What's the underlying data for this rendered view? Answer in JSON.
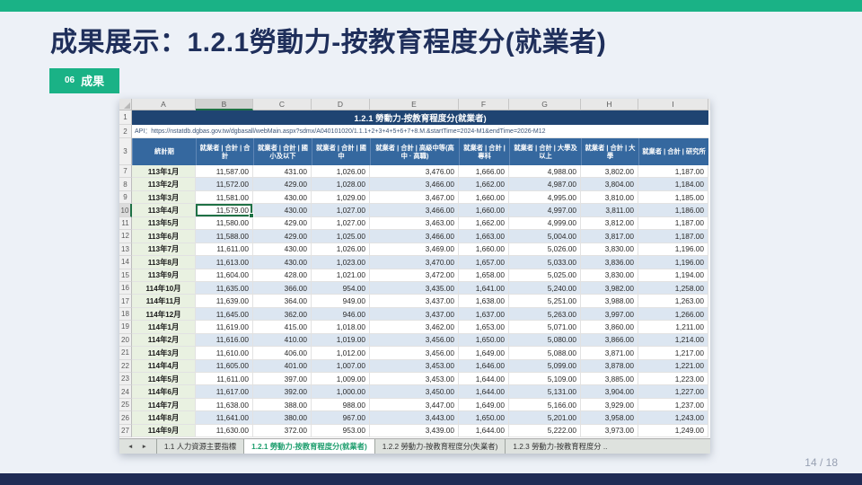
{
  "slide": {
    "title": "成果展示：1.2.1勞動力-按教育程度分(就業者)",
    "badge_number": "06",
    "badge_label": "成果",
    "page_indicator": "14 / 18",
    "accent_green": "#1AB286",
    "navy": "#1F2C55"
  },
  "sheet": {
    "column_letters": [
      "A",
      "B",
      "C",
      "D",
      "E",
      "F",
      "G",
      "H",
      "I"
    ],
    "selected": {
      "row": 10,
      "column": "B"
    },
    "title_row": {
      "number": "1",
      "text": "1.2.1  勞動力-按教育程度分(就業者)"
    },
    "api_row": {
      "number": "2",
      "text": "API：https://nstatdb.dgbas.gov.tw/dgbasall/webMain.aspx?sdmx/A040101020/1.1.1+2+3+4+5+6+7+8.M.&startTime=2024-M1&endTime=2026-M12"
    },
    "header_row": {
      "number": "3",
      "cells": [
        "統計期",
        "就業者 | 合計 | 合計",
        "就業者 | 合計 | 國小及以下",
        "就業者 | 合計 | 國中",
        "就業者 | 合計 | 高級中等(高中 · 高職)",
        "就業者 | 合計 | 專科",
        "就業者 | 合計 | 大學及以上",
        "就業者 | 合計 | 大學",
        "就業者 | 合計 | 研究所"
      ]
    },
    "rows": [
      {
        "number": 7,
        "period": "113年1月",
        "values": [
          "11,587.00",
          "431.00",
          "1,026.00",
          "3,476.00",
          "1,666.00",
          "4,988.00",
          "3,802.00",
          "1,187.00"
        ]
      },
      {
        "number": 8,
        "period": "113年2月",
        "values": [
          "11,572.00",
          "429.00",
          "1,028.00",
          "3,466.00",
          "1,662.00",
          "4,987.00",
          "3,804.00",
          "1,184.00"
        ]
      },
      {
        "number": 9,
        "period": "113年3月",
        "values": [
          "11,581.00",
          "430.00",
          "1,029.00",
          "3,467.00",
          "1,660.00",
          "4,995.00",
          "3,810.00",
          "1,185.00"
        ]
      },
      {
        "number": 10,
        "period": "113年4月",
        "values": [
          "11,579.00",
          "430.00",
          "1,027.00",
          "3,466.00",
          "1,660.00",
          "4,997.00",
          "3,811.00",
          "1,186.00"
        ]
      },
      {
        "number": 11,
        "period": "113年5月",
        "values": [
          "11,580.00",
          "429.00",
          "1,027.00",
          "3,463.00",
          "1,662.00",
          "4,999.00",
          "3,812.00",
          "1,187.00"
        ]
      },
      {
        "number": 12,
        "period": "113年6月",
        "values": [
          "11,588.00",
          "429.00",
          "1,025.00",
          "3,466.00",
          "1,663.00",
          "5,004.00",
          "3,817.00",
          "1,187.00"
        ]
      },
      {
        "number": 13,
        "period": "113年7月",
        "values": [
          "11,611.00",
          "430.00",
          "1,026.00",
          "3,469.00",
          "1,660.00",
          "5,026.00",
          "3,830.00",
          "1,196.00"
        ]
      },
      {
        "number": 14,
        "period": "113年8月",
        "values": [
          "11,613.00",
          "430.00",
          "1,023.00",
          "3,470.00",
          "1,657.00",
          "5,033.00",
          "3,836.00",
          "1,196.00"
        ]
      },
      {
        "number": 15,
        "period": "113年9月",
        "values": [
          "11,604.00",
          "428.00",
          "1,021.00",
          "3,472.00",
          "1,658.00",
          "5,025.00",
          "3,830.00",
          "1,194.00"
        ]
      },
      {
        "number": 16,
        "period": "114年10月",
        "values": [
          "11,635.00",
          "366.00",
          "954.00",
          "3,435.00",
          "1,641.00",
          "5,240.00",
          "3,982.00",
          "1,258.00"
        ]
      },
      {
        "number": 17,
        "period": "114年11月",
        "values": [
          "11,639.00",
          "364.00",
          "949.00",
          "3,437.00",
          "1,638.00",
          "5,251.00",
          "3,988.00",
          "1,263.00"
        ]
      },
      {
        "number": 18,
        "period": "114年12月",
        "values": [
          "11,645.00",
          "362.00",
          "946.00",
          "3,437.00",
          "1,637.00",
          "5,263.00",
          "3,997.00",
          "1,266.00"
        ]
      },
      {
        "number": 19,
        "period": "114年1月",
        "values": [
          "11,619.00",
          "415.00",
          "1,018.00",
          "3,462.00",
          "1,653.00",
          "5,071.00",
          "3,860.00",
          "1,211.00"
        ]
      },
      {
        "number": 20,
        "period": "114年2月",
        "values": [
          "11,616.00",
          "410.00",
          "1,019.00",
          "3,456.00",
          "1,650.00",
          "5,080.00",
          "3,866.00",
          "1,214.00"
        ]
      },
      {
        "number": 21,
        "period": "114年3月",
        "values": [
          "11,610.00",
          "406.00",
          "1,012.00",
          "3,456.00",
          "1,649.00",
          "5,088.00",
          "3,871.00",
          "1,217.00"
        ]
      },
      {
        "number": 22,
        "period": "114年4月",
        "values": [
          "11,605.00",
          "401.00",
          "1,007.00",
          "3,453.00",
          "1,646.00",
          "5,099.00",
          "3,878.00",
          "1,221.00"
        ]
      },
      {
        "number": 23,
        "period": "114年5月",
        "values": [
          "11,611.00",
          "397.00",
          "1,009.00",
          "3,453.00",
          "1,644.00",
          "5,109.00",
          "3,885.00",
          "1,223.00"
        ]
      },
      {
        "number": 24,
        "period": "114年6月",
        "values": [
          "11,617.00",
          "392.00",
          "1,000.00",
          "3,450.00",
          "1,644.00",
          "5,131.00",
          "3,904.00",
          "1,227.00"
        ]
      },
      {
        "number": 25,
        "period": "114年7月",
        "values": [
          "11,638.00",
          "388.00",
          "988.00",
          "3,447.00",
          "1,649.00",
          "5,166.00",
          "3,929.00",
          "1,237.00"
        ]
      },
      {
        "number": 26,
        "period": "114年8月",
        "values": [
          "11,641.00",
          "380.00",
          "967.00",
          "3,443.00",
          "1,650.00",
          "5,201.00",
          "3,958.00",
          "1,243.00"
        ]
      },
      {
        "number": 27,
        "period": "114年9月",
        "values": [
          "11,630.00",
          "372.00",
          "953.00",
          "3,439.00",
          "1,644.00",
          "5,222.00",
          "3,973.00",
          "1,249.00"
        ]
      }
    ],
    "tabs": {
      "scroll_left": "◄",
      "scroll_right": "►",
      "items": [
        {
          "label": "1.1 人力資源主要指標",
          "active": false
        },
        {
          "label": "1.2.1 勞動力-按教育程度分(就業者)",
          "active": true
        },
        {
          "label": "1.2.2 勞動力-按教育程度分(失業者)",
          "active": false
        },
        {
          "label": "1.2.3 勞動力-按教育程度分 ..",
          "active": false
        }
      ]
    }
  }
}
